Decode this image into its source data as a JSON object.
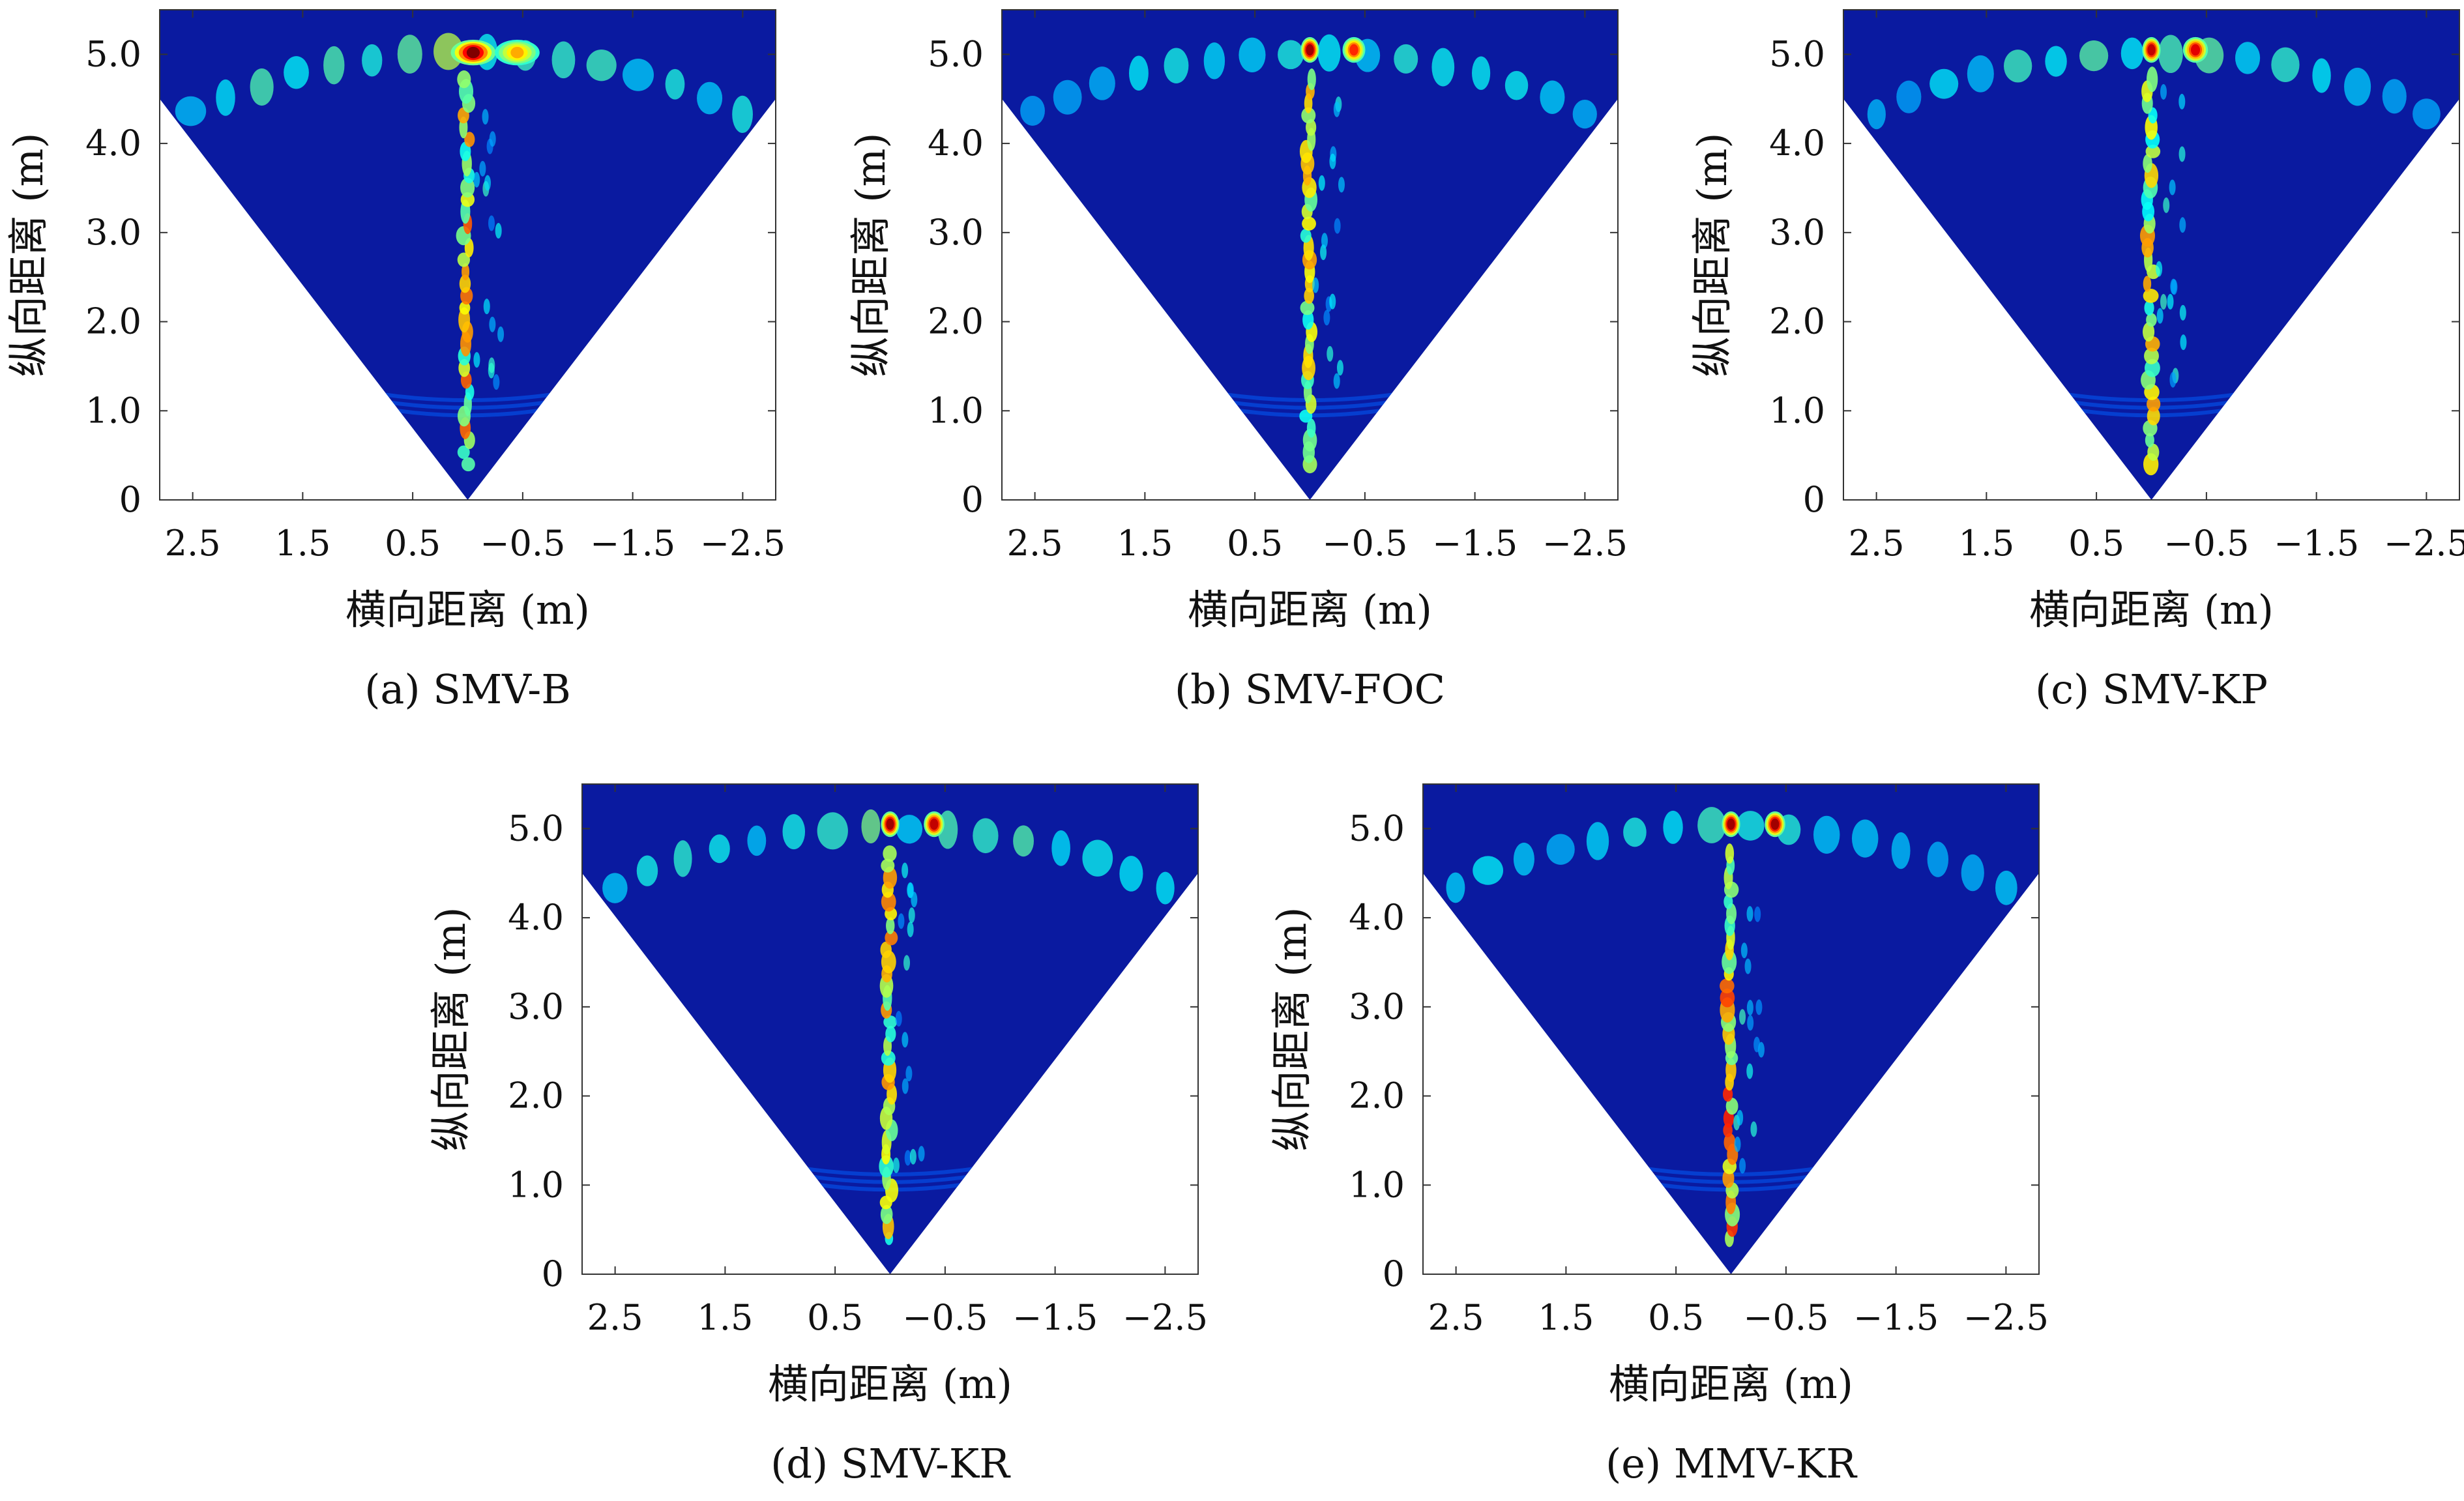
{
  "figure": {
    "colormap": [
      "#00008f",
      "#0000ff",
      "#0080ff",
      "#00ffff",
      "#80ff80",
      "#ffff00",
      "#ff8000",
      "#ff0000",
      "#800000"
    ],
    "background_color": "#0a1aa0"
  },
  "chart_data": [
    {
      "type": "heatmap",
      "title": "(a) SMV-B",
      "xlabel": "横向距离 (m)",
      "ylabel": "纵向距离 (m)",
      "xlim": [
        2.8,
        -2.8
      ],
      "ylim": [
        0,
        5.5
      ],
      "xticks": [
        2.5,
        1.5,
        0.5,
        -0.5,
        -1.5,
        -2.5
      ],
      "xtick_labels": [
        "2.5",
        "1.5",
        "0.5",
        "−0.5",
        "−1.5",
        "−2.5"
      ],
      "yticks": [
        0,
        1,
        2,
        3,
        4,
        5
      ],
      "ytick_labels": [
        "0",
        "1.0",
        "2.0",
        "3.0",
        "4.0",
        "5.0"
      ],
      "sector_half_angle_deg": 45,
      "targets": [
        {
          "x": -0.05,
          "y": 5.02,
          "intensity": 1.0,
          "spread_x": 0.18,
          "spread_y": 0.1
        },
        {
          "x": -0.45,
          "y": 5.02,
          "intensity": 0.55,
          "spread_x": 0.18,
          "spread_y": 0.1
        }
      ],
      "arc_sidelobe_level": 0.35,
      "column_clutter_level": 0.45
    },
    {
      "type": "heatmap",
      "title": "(b) SMV-FOC",
      "xlabel": "横向距离 (m)",
      "ylabel": "纵向距离 (m)",
      "xlim": [
        2.8,
        -2.8
      ],
      "ylim": [
        0,
        5.5
      ],
      "xticks": [
        2.5,
        1.5,
        0.5,
        -0.5,
        -1.5,
        -2.5
      ],
      "xtick_labels": [
        "2.5",
        "1.5",
        "0.5",
        "−0.5",
        "−1.5",
        "−2.5"
      ],
      "yticks": [
        0,
        1,
        2,
        3,
        4,
        5
      ],
      "ytick_labels": [
        "0",
        "1.0",
        "2.0",
        "3.0",
        "4.0",
        "5.0"
      ],
      "sector_half_angle_deg": 45,
      "targets": [
        {
          "x": 0.0,
          "y": 5.05,
          "intensity": 0.95,
          "spread_x": 0.06,
          "spread_y": 0.1
        },
        {
          "x": -0.4,
          "y": 5.05,
          "intensity": 0.75,
          "spread_x": 0.08,
          "spread_y": 0.1
        }
      ],
      "arc_sidelobe_level": 0.25,
      "column_clutter_level": 0.4
    },
    {
      "type": "heatmap",
      "title": "(c) SMV-KP",
      "xlabel": "横向距离 (m)",
      "ylabel": "纵向距离 (m)",
      "xlim": [
        2.8,
        -2.8
      ],
      "ylim": [
        0,
        5.5
      ],
      "xticks": [
        2.5,
        1.5,
        0.5,
        -0.5,
        -1.5,
        -2.5
      ],
      "xtick_labels": [
        "2.5",
        "1.5",
        "0.5",
        "−0.5",
        "−1.5",
        "−2.5"
      ],
      "yticks": [
        0,
        1,
        2,
        3,
        4,
        5
      ],
      "ytick_labels": [
        "0",
        "1.0",
        "2.0",
        "3.0",
        "4.0",
        "5.0"
      ],
      "sector_half_angle_deg": 45,
      "targets": [
        {
          "x": 0.0,
          "y": 5.05,
          "intensity": 0.9,
          "spread_x": 0.06,
          "spread_y": 0.1
        },
        {
          "x": -0.4,
          "y": 5.05,
          "intensity": 0.85,
          "spread_x": 0.09,
          "spread_y": 0.1
        }
      ],
      "arc_sidelobe_level": 0.28,
      "column_clutter_level": 0.4
    },
    {
      "type": "heatmap",
      "title": "(d) SMV-KR",
      "xlabel": "横向距离 (m)",
      "ylabel": "纵向距离 (m)",
      "xlim": [
        2.8,
        -2.8
      ],
      "ylim": [
        0,
        5.5
      ],
      "xticks": [
        2.5,
        1.5,
        0.5,
        -0.5,
        -1.5,
        -2.5
      ],
      "xtick_labels": [
        "2.5",
        "1.5",
        "0.5",
        "−0.5",
        "−1.5",
        "−2.5"
      ],
      "yticks": [
        0,
        1,
        2,
        3,
        4,
        5
      ],
      "ytick_labels": [
        "0",
        "1.0",
        "2.0",
        "3.0",
        "4.0",
        "5.0"
      ],
      "sector_half_angle_deg": 45,
      "targets": [
        {
          "x": 0.0,
          "y": 5.05,
          "intensity": 0.95,
          "spread_x": 0.06,
          "spread_y": 0.1
        },
        {
          "x": -0.4,
          "y": 5.05,
          "intensity": 0.9,
          "spread_x": 0.07,
          "spread_y": 0.1
        }
      ],
      "arc_sidelobe_level": 0.3,
      "column_clutter_level": 0.45
    },
    {
      "type": "heatmap",
      "title": "(e) MMV-KR",
      "xlabel": "横向距离 (m)",
      "ylabel": "纵向距离 (m)",
      "xlim": [
        2.8,
        -2.8
      ],
      "ylim": [
        0,
        5.5
      ],
      "xticks": [
        2.5,
        1.5,
        0.5,
        -0.5,
        -1.5,
        -2.5
      ],
      "xtick_labels": [
        "2.5",
        "1.5",
        "0.5",
        "−0.5",
        "−1.5",
        "−2.5"
      ],
      "yticks": [
        0,
        1,
        2,
        3,
        4,
        5
      ],
      "ytick_labels": [
        "0",
        "1.0",
        "2.0",
        "3.0",
        "4.0",
        "5.0"
      ],
      "sector_half_angle_deg": 45,
      "targets": [
        {
          "x": 0.0,
          "y": 5.05,
          "intensity": 0.95,
          "spread_x": 0.06,
          "spread_y": 0.1
        },
        {
          "x": -0.4,
          "y": 5.05,
          "intensity": 0.95,
          "spread_x": 0.07,
          "spread_y": 0.1
        }
      ],
      "arc_sidelobe_level": 0.3,
      "column_clutter_level": 0.5
    }
  ]
}
